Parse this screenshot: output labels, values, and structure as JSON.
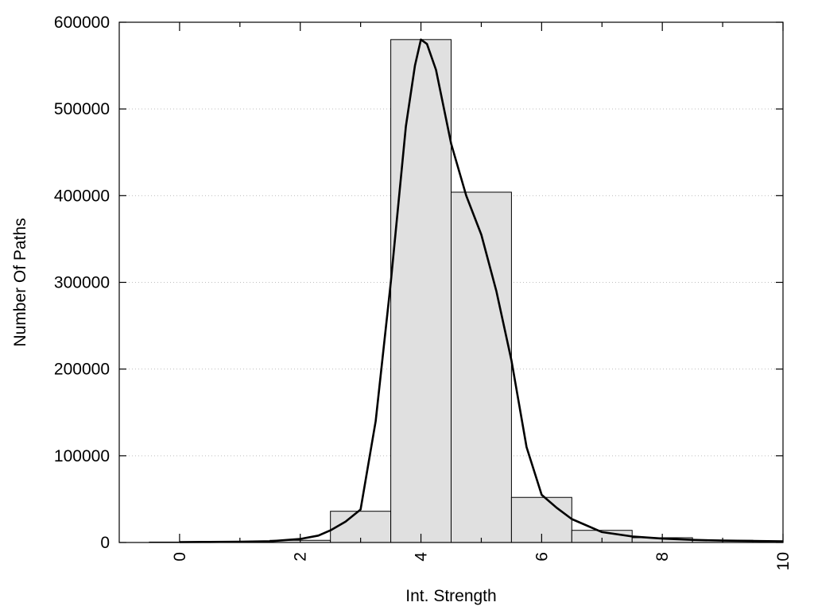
{
  "chart_data": {
    "type": "bar",
    "title": "",
    "xlabel": "Int. Strength",
    "ylabel": "Number Of Paths",
    "xlim": [
      -1,
      10
    ],
    "ylim": [
      0,
      600000
    ],
    "grid": "horizontal-dotted",
    "xticks": [
      "0",
      "2",
      "4",
      "6",
      "8",
      "10"
    ],
    "xtick_values": [
      0,
      2,
      4,
      6,
      8,
      10
    ],
    "yticks": [
      "0",
      "100000",
      "200000",
      "300000",
      "400000",
      "500000",
      "600000"
    ],
    "ytick_values": [
      0,
      100000,
      200000,
      300000,
      400000,
      500000,
      600000
    ],
    "series": [
      {
        "type": "bar",
        "bin_width": 1,
        "x": [
          0,
          1,
          2,
          3,
          4,
          5,
          6,
          7,
          8,
          9,
          10
        ],
        "values": [
          500,
          800,
          2500,
          36000,
          580000,
          404000,
          52000,
          14000,
          5500,
          2500,
          1500
        ]
      },
      {
        "type": "line",
        "x": [
          0,
          0.5,
          1,
          1.5,
          2,
          2.3,
          2.5,
          2.75,
          3,
          3.25,
          3.5,
          3.75,
          3.9,
          4,
          4.1,
          4.25,
          4.5,
          4.75,
          5,
          5.25,
          5.5,
          5.75,
          6,
          6.25,
          6.5,
          7,
          7.5,
          8,
          8.5,
          9,
          9.5,
          10
        ],
        "values": [
          500,
          600,
          900,
          1500,
          4000,
          8000,
          14000,
          24000,
          38000,
          140000,
          300000,
          480000,
          550000,
          580000,
          575000,
          545000,
          460000,
          400000,
          355000,
          290000,
          210000,
          110000,
          55000,
          40000,
          27000,
          12000,
          7000,
          4500,
          3000,
          2200,
          1700,
          1300
        ]
      }
    ]
  }
}
